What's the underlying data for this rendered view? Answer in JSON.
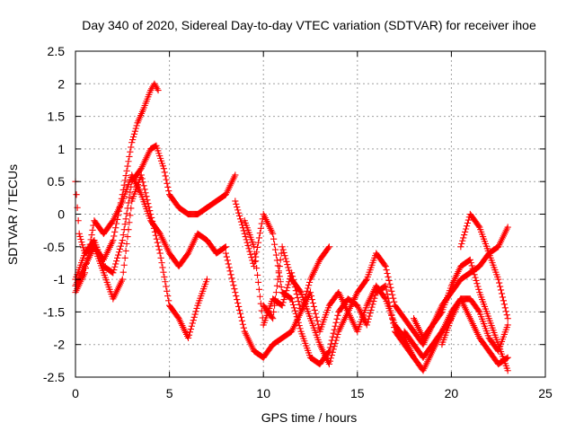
{
  "chart_data": {
    "type": "scatter",
    "title": "Day 340 of 2020, Sidereal Day-to-day VTEC variation (SDTVAR) for receiver ihoe",
    "xlabel": "GPS time / hours",
    "ylabel": "SDTVAR / TECUs",
    "xlim": [
      0,
      25
    ],
    "ylim": [
      -2.5,
      2.5
    ],
    "xticks": [
      "0",
      "5",
      "10",
      "15",
      "20",
      "25"
    ],
    "yticks": [
      "-2.5",
      "-2",
      "-1.5",
      "-1",
      "-0.5",
      "0",
      "0.5",
      "1",
      "1.5",
      "2",
      "2.5"
    ],
    "grid": true,
    "marker": "+",
    "color": "#ff0000",
    "series": [
      {
        "x": [
          0,
          0.5,
          1,
          1.5,
          2,
          2.5,
          3,
          3.3,
          3.6,
          4,
          4.2,
          4.4
        ],
        "y": [
          -1.0,
          -0.6,
          -0.5,
          -0.7,
          -0.4,
          0.3,
          1.1,
          1.4,
          1.6,
          1.9,
          2.0,
          1.9
        ]
      },
      {
        "x": [
          0,
          0.2,
          0.5,
          1,
          1.5,
          2,
          2.5,
          3,
          3.5,
          4,
          4.3,
          4.7,
          5,
          5.5,
          6,
          6.5,
          7,
          7.5,
          8,
          8.5
        ],
        "y": [
          0.5,
          -0.3,
          -0.6,
          -0.4,
          -0.8,
          -0.9,
          -0.4,
          0.5,
          0.7,
          1.0,
          1.05,
          0.7,
          0.3,
          0.1,
          0.0,
          0.0,
          0.1,
          0.2,
          0.3,
          0.6
        ]
      },
      {
        "x": [
          0,
          0.5,
          1,
          1.5,
          2,
          2.5,
          3,
          3.5,
          4,
          4.5,
          5,
          5.5,
          6,
          6.5,
          7,
          7.5,
          8
        ],
        "y": [
          -1.2,
          -0.9,
          -0.1,
          -0.3,
          -0.1,
          0.2,
          0.6,
          0.3,
          -0.1,
          -0.3,
          -0.6,
          -0.8,
          -0.6,
          -0.3,
          -0.4,
          -0.6,
          -0.5
        ]
      },
      {
        "x": [
          0,
          0.5,
          1,
          1.5,
          2,
          2.5,
          3,
          3.5,
          4,
          4.5,
          5,
          5.5,
          6,
          6.5,
          7
        ],
        "y": [
          -1.1,
          -0.8,
          -0.5,
          -0.9,
          -1.3,
          -1.0,
          0.2,
          0.6,
          0.0,
          -0.6,
          -1.4,
          -1.6,
          -1.9,
          -1.4,
          -1.0
        ]
      },
      {
        "x": [
          8,
          8.5,
          9,
          9.5,
          10,
          10.5,
          11,
          11.5,
          12,
          12.5,
          13,
          13.5
        ],
        "y": [
          -0.6,
          -1.2,
          -1.8,
          -2.1,
          -2.2,
          -2.0,
          -1.9,
          -1.8,
          -1.5,
          -1.0,
          -0.7,
          -0.5
        ]
      },
      {
        "x": [
          8.5,
          9,
          9.5,
          10,
          10.5,
          11,
          11.5,
          12,
          12.5,
          13,
          13.5,
          14,
          14.5,
          15,
          15.5,
          16,
          16.5,
          17,
          17.5,
          18
        ],
        "y": [
          0.2,
          -0.3,
          -0.8,
          0.0,
          -0.3,
          -1.2,
          -1.3,
          -1.8,
          -2.2,
          -2.3,
          -2.1,
          -1.5,
          -1.3,
          -1.4,
          -1.7,
          -1.2,
          -1.1,
          -1.8,
          -2.0,
          -2.2
        ]
      },
      {
        "x": [
          9,
          9.5,
          10,
          10.5,
          11,
          11.5,
          12,
          12.5,
          13,
          13.5,
          14,
          14.5,
          15,
          15.5,
          16,
          16.5,
          17,
          17.5,
          18,
          18.5,
          19,
          19.5,
          20
        ],
        "y": [
          -0.1,
          -0.5,
          -1.7,
          -1.3,
          -1.4,
          -0.9,
          -1.5,
          -1.2,
          -1.8,
          -1.4,
          -1.2,
          -1.5,
          -1.8,
          -1.4,
          -1.1,
          -1.3,
          -1.7,
          -1.9,
          -2.2,
          -2.4,
          -2.1,
          -1.8,
          -1.6
        ]
      },
      {
        "x": [
          10,
          10.5,
          11,
          11.5,
          12,
          12.5,
          13,
          13.5,
          14,
          14.5,
          15,
          15.5,
          16,
          16.5,
          17,
          17.5,
          18,
          18.5,
          19,
          19.5,
          20,
          20.5,
          21,
          21.5,
          22,
          22.5,
          23
        ],
        "y": [
          -1.4,
          -1.6,
          -0.5,
          -1.0,
          -1.2,
          -1.6,
          -2.0,
          -2.3,
          -1.8,
          -1.5,
          -1.2,
          -1.0,
          -0.6,
          -0.8,
          -1.4,
          -1.6,
          -1.8,
          -2.0,
          -1.7,
          -1.4,
          -1.2,
          -1.0,
          -0.9,
          -0.8,
          -0.6,
          -0.5,
          -0.2
        ]
      },
      {
        "x": [
          17.5,
          18,
          18.5,
          19,
          19.5,
          20,
          20.5,
          21,
          21.5,
          22,
          22.5,
          23
        ],
        "y": [
          -1.8,
          -2.0,
          -2.2,
          -2.0,
          -1.8,
          -1.5,
          -1.3,
          -1.6,
          -1.9,
          -2.1,
          -2.3,
          -2.2
        ]
      },
      {
        "x": [
          20.5,
          21,
          21.5,
          22,
          22.5,
          23
        ],
        "y": [
          -0.5,
          0.0,
          -0.2,
          -0.6,
          -1.0,
          -1.6
        ]
      },
      {
        "x": [
          18,
          18.5,
          19,
          19.5,
          20,
          20.5,
          21,
          21.5,
          22,
          22.5,
          23
        ],
        "y": [
          -1.6,
          -1.9,
          -1.7,
          -1.5,
          -1.1,
          -0.8,
          -0.7,
          -1.2,
          -1.6,
          -2.0,
          -2.4
        ]
      },
      {
        "x": [
          19.5,
          20,
          20.5,
          21,
          21.5,
          22,
          22.5,
          23
        ],
        "y": [
          -2.0,
          -1.6,
          -1.3,
          -1.3,
          -1.5,
          -1.9,
          -2.1,
          -1.7
        ]
      }
    ]
  }
}
